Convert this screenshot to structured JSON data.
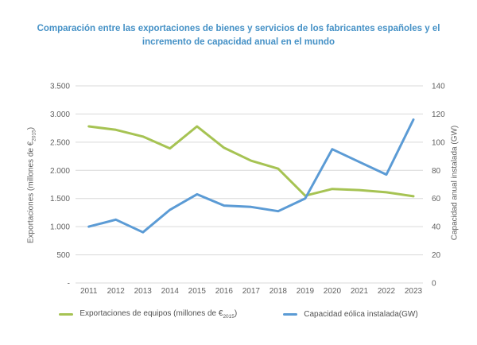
{
  "title": "Comparación entre las exportaciones de bienes y servicios de los fabricantes españoles y el incremento de capacidad anual en el mundo",
  "axes": {
    "left": {
      "label_pre": "Exportaciones (millones de €",
      "label_sub": "2015",
      "label_post": ")",
      "ticks": [
        "3.500",
        "3.000",
        "2.500",
        "2.000",
        "1.500",
        "1.000",
        "500",
        "-"
      ]
    },
    "right": {
      "label": "Capacidad anual instalada (GW)",
      "ticks": [
        "140",
        "120",
        "100",
        "80",
        "60",
        "40",
        "20",
        "0"
      ]
    },
    "x": {
      "ticks": [
        "2011",
        "2012",
        "2013",
        "2014",
        "2015",
        "2016",
        "2017",
        "2018",
        "2019",
        "2020",
        "2021",
        "2022",
        "2023"
      ]
    }
  },
  "legend": [
    {
      "pre": "Exportaciones de equipos (millones de €",
      "sub": "2015",
      "post": ")"
    },
    {
      "label": "Capacidad eólica instalada(GW)"
    }
  ],
  "colors": {
    "title": "#4591c6",
    "axis_text": "#616161",
    "grid": "#d9d9d9",
    "exportaciones": "#a6c353",
    "capacidad": "#5b9bd5"
  },
  "chart_data": {
    "type": "line",
    "x": [
      2011,
      2012,
      2013,
      2014,
      2015,
      2016,
      2017,
      2018,
      2019,
      2020,
      2021,
      2022,
      2023
    ],
    "series": [
      {
        "name": "Exportaciones de equipos (millones de €2015)",
        "axis": "left",
        "color": "#a6c353",
        "values": [
          2780,
          2720,
          2600,
          2390,
          2780,
          2400,
          2170,
          2030,
          1550,
          1670,
          1650,
          1610,
          1540
        ]
      },
      {
        "name": "Capacidad eólica instalada (GW)",
        "axis": "right",
        "color": "#5b9bd5",
        "values": [
          40,
          45,
          36,
          52,
          63,
          55,
          54,
          51,
          60,
          95,
          86,
          77,
          116
        ]
      }
    ],
    "title": "Comparación entre las exportaciones de bienes y servicios de los fabricantes españoles y el incremento de capacidad anual en el mundo",
    "xlabel": "",
    "ylabel_left": "Exportaciones (millones de €2015)",
    "ylabel_right": "Capacidad anual instalada (GW)",
    "left_ylim": [
      0,
      3500
    ],
    "right_ylim": [
      0,
      140
    ],
    "grid": true,
    "legend_position": "bottom"
  }
}
